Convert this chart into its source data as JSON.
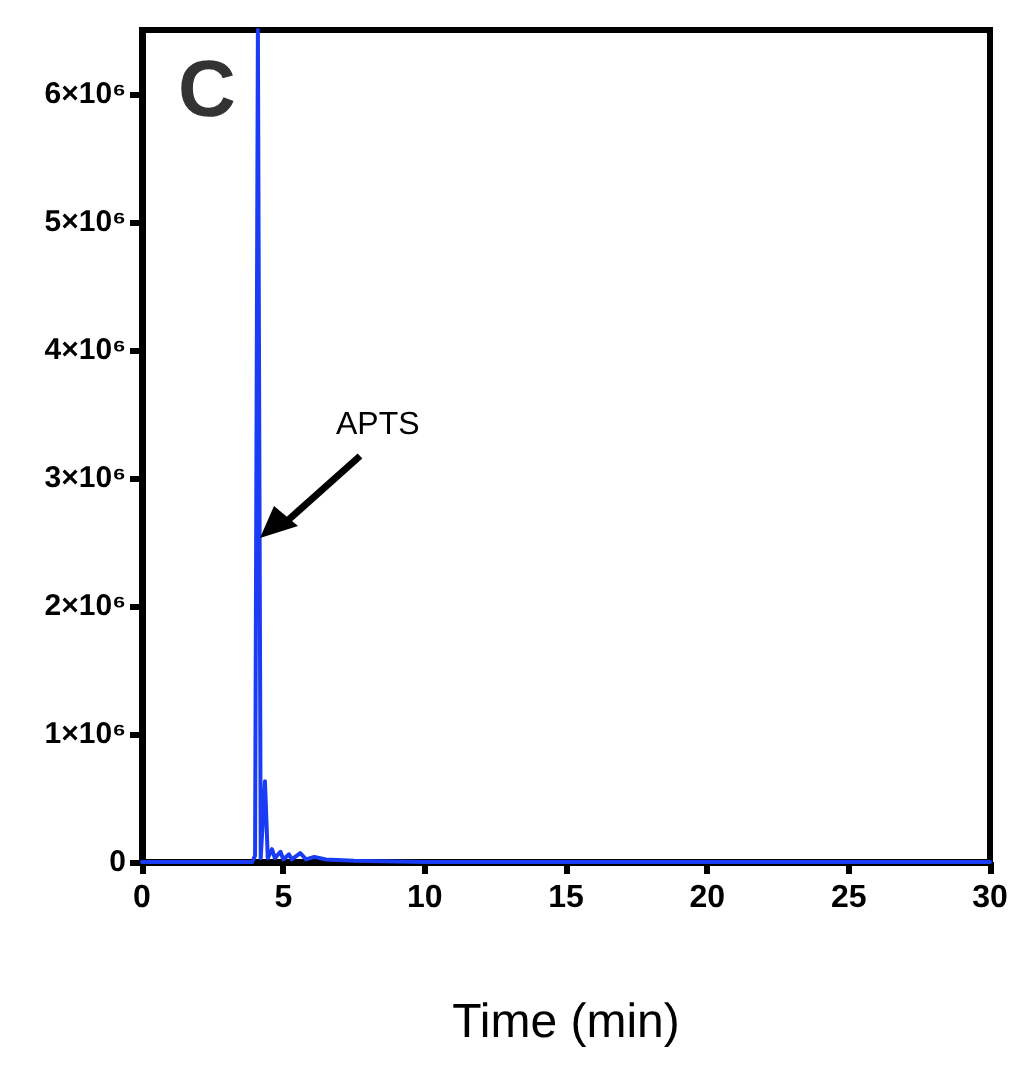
{
  "chart_data": {
    "type": "line",
    "title": "C",
    "xlabel": "Time (min)",
    "x": [
      0,
      3.9,
      4.0,
      4.1,
      4.2,
      4.35,
      4.45,
      4.6,
      4.7,
      4.9,
      5.0,
      5.2,
      5.3,
      5.6,
      5.8,
      6.1,
      6.5,
      7.5,
      10,
      30
    ],
    "series": [
      {
        "color": "#1a3cf5",
        "values": [
          0,
          0,
          50000,
          6500000,
          30000,
          630000,
          30000,
          100000,
          30000,
          80000,
          20000,
          60000,
          20000,
          70000,
          20000,
          40000,
          20000,
          10000,
          0,
          0
        ]
      }
    ],
    "xlim": [
      0,
      30
    ],
    "xticks": [
      0,
      5,
      10,
      15,
      20,
      25,
      30
    ],
    "ylim": [
      0,
      6500000
    ],
    "yticks": [
      0,
      {
        "value": 1000000,
        "label": "1×10⁶"
      },
      {
        "value": 2000000,
        "label": "2×10⁶"
      },
      {
        "value": 3000000,
        "label": "3×10⁶"
      },
      {
        "value": 4000000,
        "label": "4×10⁶"
      },
      {
        "value": 5000000,
        "label": "5×10⁶"
      },
      {
        "value": 6000000,
        "label": "6×10⁶"
      }
    ],
    "annotations": [
      "APTS"
    ],
    "grid": false,
    "marker": "none",
    "line_style": "solid"
  }
}
